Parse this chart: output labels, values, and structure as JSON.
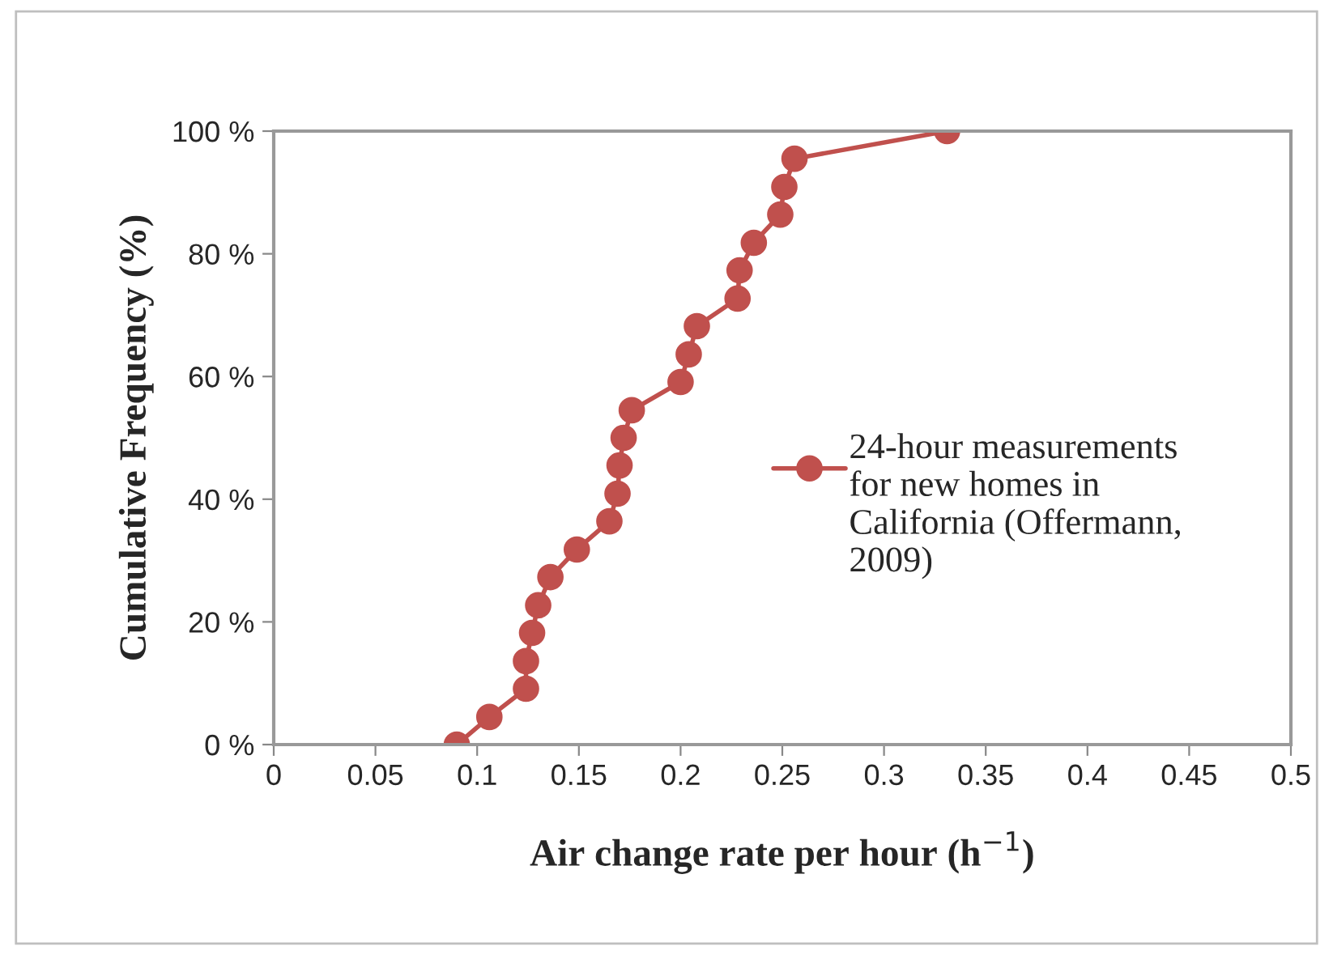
{
  "chart_data": {
    "type": "line",
    "xlabel": "Air change rate per hour (h$^{−1}$)",
    "ylabel": "Cumulative Frequency (%)",
    "series": [
      {
        "name": "24-hour measurements for new homes in California (Offermann, 2009)",
        "color": "#c0504d",
        "x": [
          0.09,
          0.106,
          0.124,
          0.124,
          0.127,
          0.13,
          0.136,
          0.149,
          0.165,
          0.169,
          0.17,
          0.172,
          0.176,
          0.2,
          0.204,
          0.208,
          0.228,
          0.229,
          0.236,
          0.249,
          0.251,
          0.256,
          0.331
        ],
        "values": [
          0,
          4.5,
          9.1,
          13.6,
          18.2,
          22.7,
          27.3,
          31.8,
          36.4,
          40.9,
          45.5,
          50,
          54.5,
          59.1,
          63.6,
          68.2,
          72.7,
          77.3,
          81.8,
          86.4,
          90.9,
          95.5,
          100
        ]
      }
    ],
    "xlim": [
      0,
      0.5
    ],
    "xticks": [
      0,
      0.05,
      0.1,
      0.15,
      0.2,
      0.25,
      0.3,
      0.35,
      0.4,
      0.45,
      0.5
    ],
    "ylim": [
      0,
      100
    ],
    "yticks": [
      {
        "value": 0,
        "label": "0 %"
      },
      {
        "value": 20,
        "label": "20 %"
      },
      {
        "value": 40,
        "label": "40 %"
      },
      {
        "value": 60,
        "label": "60 %"
      },
      {
        "value": 80,
        "label": "80 %"
      },
      {
        "value": 100,
        "label": "100 %"
      }
    ],
    "grid": false,
    "legend": "right",
    "marker": "circle",
    "line_style": "solid"
  }
}
